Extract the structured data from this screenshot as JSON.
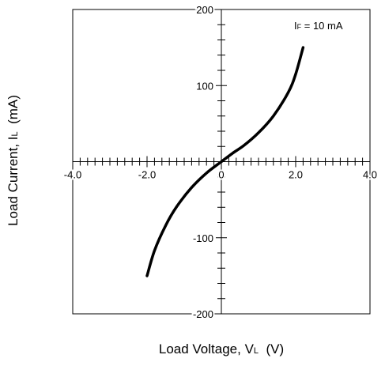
{
  "chart_data": {
    "type": "line",
    "xlabel": "Load Voltage, V",
    "xlabel_sub": "L",
    "xlabel_unit": "(V)",
    "ylabel": "Load Current, I",
    "ylabel_sub": "L",
    "ylabel_unit": "(mA)",
    "annotation": {
      "main": "I",
      "sub": "F",
      "rest": " = 10 mA"
    },
    "xlim": [
      -4.0,
      4.0
    ],
    "ylim": [
      -200,
      200
    ],
    "x_tick_labels": [
      "-4.0",
      "-2.0",
      "0",
      "2.0",
      "4.0"
    ],
    "x_tick_values": [
      -4.0,
      -2.0,
      0,
      2.0,
      4.0
    ],
    "y_tick_labels": [
      "200",
      "100",
      "-100",
      "-200"
    ],
    "y_tick_values": [
      200,
      100,
      -100,
      -200
    ],
    "grid": false,
    "series": [
      {
        "x": [
          -2.0,
          -1.8,
          -1.5,
          -1.2,
          -0.8,
          -0.4,
          0.0,
          0.3,
          0.6,
          1.0,
          1.4,
          1.8,
          2.0,
          2.2
        ],
        "y": [
          -150,
          -117,
          -84,
          -59,
          -34,
          -15,
          0,
          11,
          21,
          38,
          60,
          91,
          115,
          150
        ]
      }
    ]
  }
}
